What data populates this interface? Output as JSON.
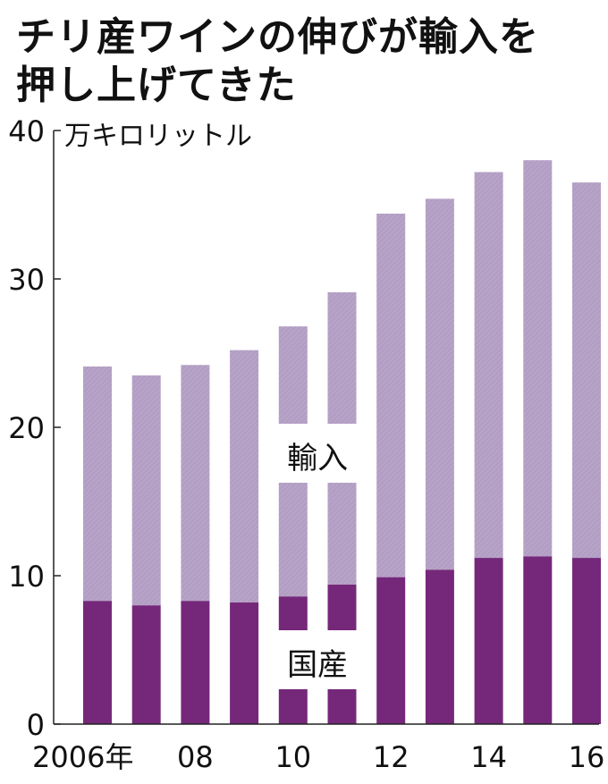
{
  "title_lines": [
    "チリ産ワインの伸びが輸入を",
    "押し上げてきた"
  ],
  "colors": {
    "import": "#b7a3c7",
    "domestic": "#75287a",
    "axis": "#222222"
  },
  "chart_data": {
    "type": "bar",
    "stacked": true,
    "title": "チリ産ワインの伸びが輸入を押し上げてきた",
    "unit": "万キロリットル",
    "ylim": [
      0,
      40
    ],
    "yticks": [
      "0",
      "10",
      "20",
      "30",
      "40"
    ],
    "years": [
      2006,
      2007,
      2008,
      2009,
      2010,
      2011,
      2012,
      2013,
      2014,
      2015,
      2016
    ],
    "xtick_labels": [
      "2006年",
      "",
      "08",
      "",
      "10",
      "",
      "12",
      "",
      "14",
      "",
      "16"
    ],
    "series": [
      {
        "name": "国産",
        "values": [
          8.3,
          8.0,
          8.3,
          8.2,
          8.6,
          9.4,
          9.9,
          10.4,
          11.2,
          11.3,
          11.2
        ]
      },
      {
        "name": "輸入",
        "values": [
          15.8,
          15.5,
          15.9,
          17.0,
          18.2,
          19.7,
          24.5,
          25.0,
          26.0,
          26.7,
          25.3
        ]
      }
    ],
    "grid": false,
    "legend": "inline labels"
  }
}
